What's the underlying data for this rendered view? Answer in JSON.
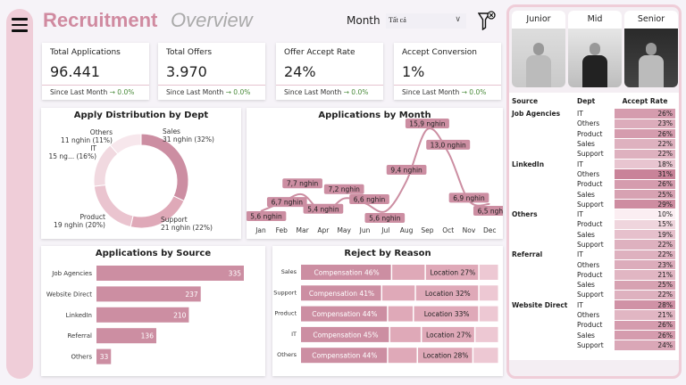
{
  "header": {
    "title": "Recruitment",
    "subtitle": "Overview",
    "month_label": "Month",
    "month_value": "Tất cả",
    "menu_icon": "hamburger-icon",
    "filter_icon": "clear-filter-icon"
  },
  "kpis": [
    {
      "label": "Total Applications",
      "value": "96.441",
      "since": "Since Last Month",
      "delta": "→ 0.0%"
    },
    {
      "label": "Total Offers",
      "value": "3.970",
      "since": "Since Last Month",
      "delta": "→ 0.0%"
    },
    {
      "label": "Offer Accept Rate",
      "value": "24%",
      "since": "Since Last Month",
      "delta": "→ 0.0%"
    },
    {
      "label": "Accept Conversion",
      "value": "1%",
      "since": "Since Last Month",
      "delta": "→ 0.0%"
    }
  ],
  "levels": [
    "Junior",
    "Mid",
    "Senior"
  ],
  "colors": {
    "accent": "#d08aa0",
    "bar": "#cc8ea2",
    "sidebar": "#efcdd8",
    "positive": "#4a8a3a"
  },
  "chart_data": [
    {
      "type": "pie",
      "title": "Apply Distribution by Dept",
      "donut": true,
      "slices": [
        {
          "name": "Sales",
          "value": 31,
          "label": "31 nghin (32%)",
          "color": "#cc8ea2"
        },
        {
          "name": "Support",
          "value": 21,
          "label": "21 nghin (22%)",
          "color": "#dfa9b8"
        },
        {
          "name": "Product",
          "value": 19,
          "label": "19 nghin (20%)",
          "color": "#eac4cf"
        },
        {
          "name": "IT",
          "value": 15,
          "label": "15 ng... (16%)",
          "color": "#f1d9e0"
        },
        {
          "name": "Others",
          "value": 11,
          "label": "11 nghin (11%)",
          "color": "#f7e7ec"
        }
      ]
    },
    {
      "type": "line",
      "title": "Applications by Month",
      "categories": [
        "Jan",
        "Feb",
        "Mar",
        "Apr",
        "May",
        "Jun",
        "Jul",
        "Aug",
        "Sep",
        "Oct",
        "Nov",
        "Dec"
      ],
      "values": [
        5.6,
        6.7,
        7.7,
        5.4,
        7.2,
        6.6,
        5.6,
        9.4,
        15.9,
        13.0,
        6.9,
        6.5
      ],
      "labels": [
        "5,6 nghin",
        "6,7 nghin",
        "7,7 nghin",
        "5,4 nghin",
        "7,2 nghin",
        "6,6 nghin",
        "5,6 nghin",
        "9,4 nghin",
        "15,9 nghin",
        "13,0 nghin",
        "6,9 nghin",
        "6,5 nghin"
      ]
    },
    {
      "type": "bar",
      "title": "Applications by Source",
      "orientation": "horizontal",
      "categories": [
        "Job Agencies",
        "Website Direct",
        "LinkedIn",
        "Referral",
        "Others"
      ],
      "values": [
        335,
        237,
        210,
        136,
        33
      ]
    },
    {
      "type": "bar",
      "title": "Reject by Reason",
      "stacked": "100%",
      "orientation": "horizontal",
      "categories": [
        "Sales",
        "Support",
        "Product",
        "IT",
        "Others"
      ],
      "series": [
        {
          "name": "Compensation",
          "values": [
            46,
            41,
            44,
            45,
            44
          ],
          "color": "#cc8ea2"
        },
        {
          "values": [
            17,
            17,
            13,
            16,
            15
          ],
          "color": "#dfa9b8"
        },
        {
          "name": "Location",
          "values": [
            27,
            32,
            33,
            27,
            28
          ],
          "color": "#dfa9b8"
        },
        {
          "values": [
            10,
            10,
            10,
            12,
            13
          ],
          "color": "#edc8d3"
        }
      ]
    }
  ],
  "table": {
    "headers": [
      "Source",
      "Dept",
      "Accept Rate"
    ],
    "groups": [
      {
        "source": "Job Agencies",
        "rows": [
          [
            "IT",
            "26%"
          ],
          [
            "Others",
            "23%"
          ],
          [
            "Product",
            "26%"
          ],
          [
            "Sales",
            "22%"
          ],
          [
            "Support",
            "22%"
          ]
        ]
      },
      {
        "source": "LinkedIn",
        "rows": [
          [
            "IT",
            "18%"
          ],
          [
            "Others",
            "31%"
          ],
          [
            "Product",
            "26%"
          ],
          [
            "Sales",
            "25%"
          ],
          [
            "Support",
            "29%"
          ]
        ]
      },
      {
        "source": "Others",
        "rows": [
          [
            "IT",
            "10%"
          ],
          [
            "Product",
            "15%"
          ],
          [
            "Sales",
            "19%"
          ],
          [
            "Support",
            "22%"
          ]
        ]
      },
      {
        "source": "Referral",
        "rows": [
          [
            "IT",
            "22%"
          ],
          [
            "Others",
            "23%"
          ],
          [
            "Product",
            "21%"
          ],
          [
            "Sales",
            "25%"
          ],
          [
            "Support",
            "22%"
          ]
        ]
      },
      {
        "source": "Website Direct",
        "rows": [
          [
            "IT",
            "28%"
          ],
          [
            "Others",
            "21%"
          ],
          [
            "Product",
            "26%"
          ],
          [
            "Sales",
            "26%"
          ],
          [
            "Support",
            "24%"
          ]
        ]
      }
    ]
  }
}
